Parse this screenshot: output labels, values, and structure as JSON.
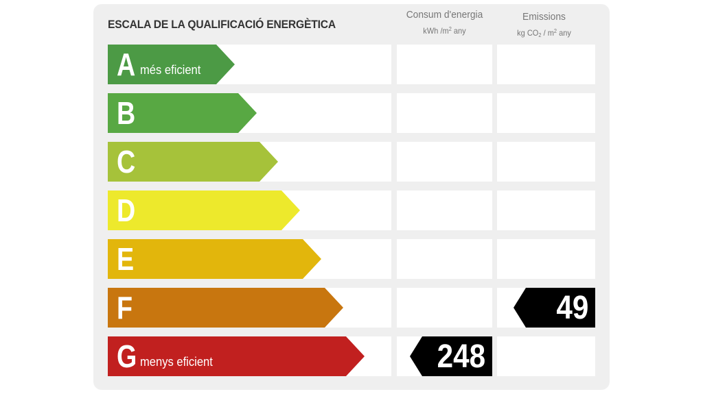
{
  "label": {
    "title": "ESCALA DE LA QUALIFICACIÓ ENERGÈTICA",
    "columns": {
      "consum": {
        "heading": "Consum d'energia",
        "unit_prefix": "kWh /m",
        "unit_sup": "2",
        "unit_suffix": " any"
      },
      "emissions": {
        "heading": "Emissions",
        "unit_prefix": "kg CO",
        "unit_sub": "2",
        "unit_mid": " / m",
        "unit_sup": "2",
        "unit_suffix": " any"
      }
    },
    "classes": [
      {
        "letter": "A",
        "sublabel": "més eficient",
        "color": "#4c9a45"
      },
      {
        "letter": "B",
        "sublabel": "",
        "color": "#58a843"
      },
      {
        "letter": "C",
        "sublabel": "",
        "color": "#a6c23a"
      },
      {
        "letter": "D",
        "sublabel": "",
        "color": "#ede92c"
      },
      {
        "letter": "E",
        "sublabel": "",
        "color": "#e2b60c"
      },
      {
        "letter": "F",
        "sublabel": "",
        "color": "#c8760f"
      },
      {
        "letter": "G",
        "sublabel": "menys eficient",
        "color": "#c1201f"
      }
    ],
    "consum_value": "248",
    "consum_rating": "G",
    "emissions_value": "49",
    "emissions_rating": "F"
  }
}
